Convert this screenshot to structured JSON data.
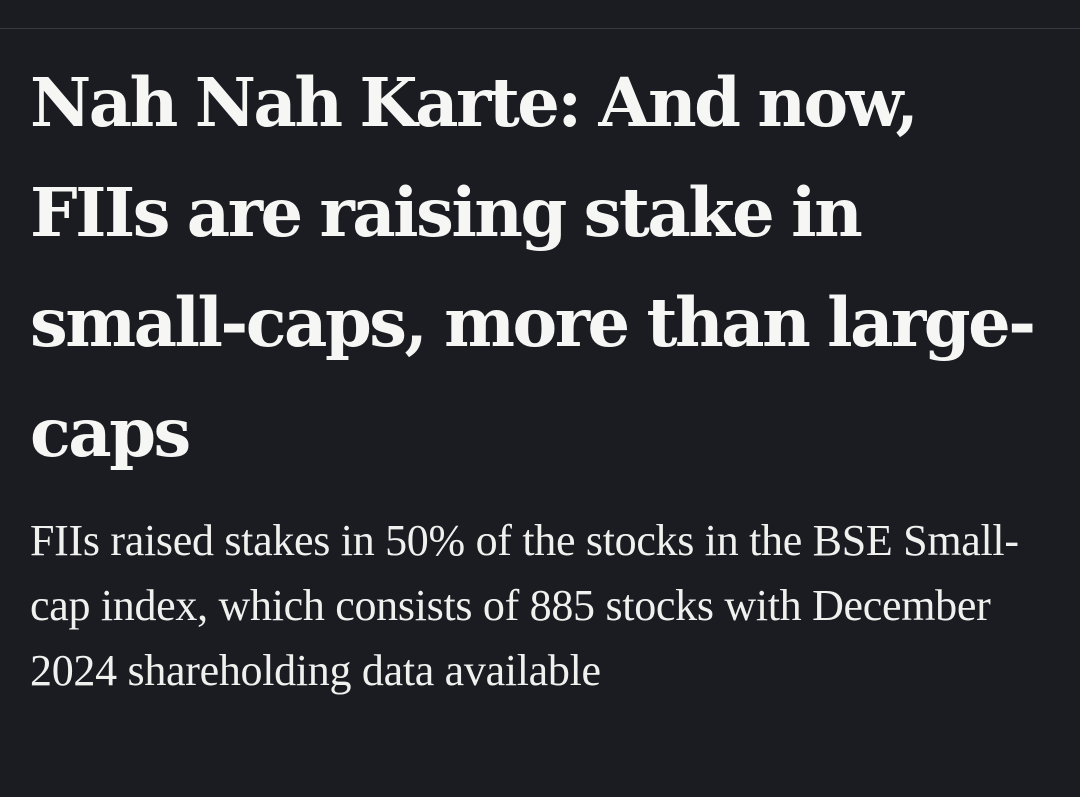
{
  "article": {
    "headline": "Nah Nah Karte: And now, FIIs are raising stake in small-caps, more than large-caps",
    "summary": "FIIs raised stakes in 50% of the stocks in the BSE Small-cap index, which consists of 885 stocks with December 2024 shareholding data available"
  },
  "colors": {
    "background": "#1b1c22",
    "text": "#f6f6f4",
    "divider": "#3a3b42"
  }
}
